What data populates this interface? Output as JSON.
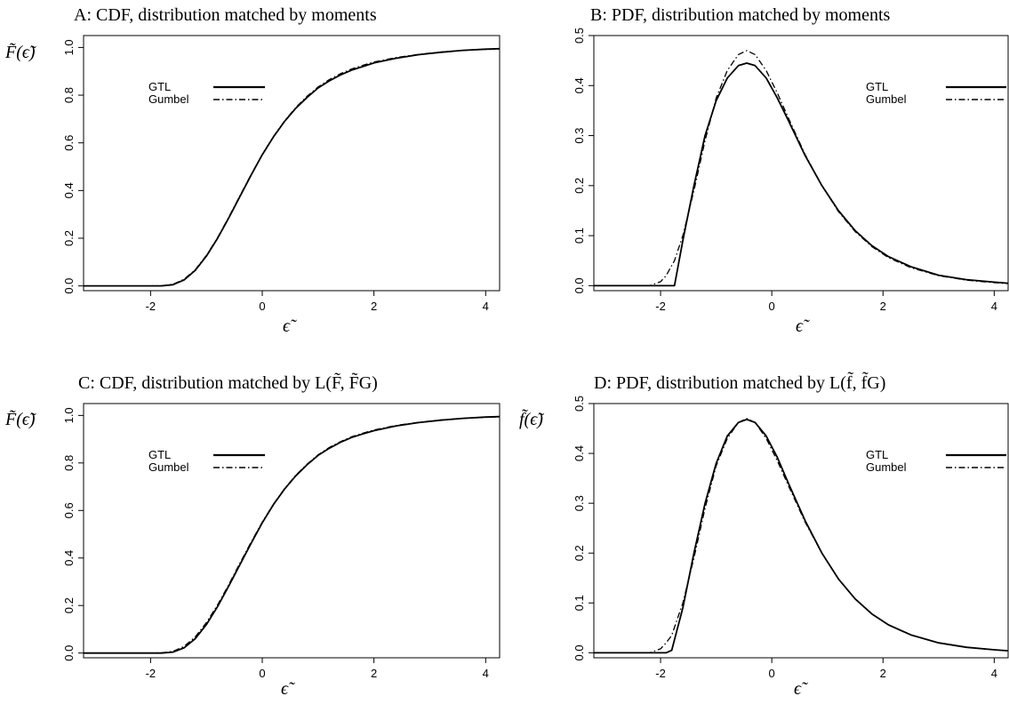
{
  "chart_data": [
    {
      "panel": "A",
      "type": "line",
      "title": "A: CDF, distribution matched by moments",
      "xlabel": "ϵ̃",
      "ylabel": "F̃(ϵ̃)",
      "xlim": [
        -3.2,
        4.25
      ],
      "ylim": [
        -0.02,
        1.05
      ],
      "xticks": [
        -2,
        0,
        2,
        4
      ],
      "yticks": [
        0.0,
        0.2,
        0.4,
        0.6,
        0.8,
        1.0
      ],
      "ytick_labels": [
        "0.0",
        "0.2",
        "0.4",
        "0.6",
        "0.8",
        "1.0"
      ],
      "xtick_labels": [
        "-2",
        "0",
        "2",
        "4"
      ],
      "legend": {
        "position": "top-left",
        "entries": [
          "GTL",
          "Gumbel"
        ]
      },
      "x": [
        -3.2,
        -2.0,
        -1.8,
        -1.6,
        -1.4,
        -1.2,
        -1.0,
        -0.8,
        -0.6,
        -0.4,
        -0.2,
        0.0,
        0.2,
        0.4,
        0.6,
        0.8,
        1.0,
        1.2,
        1.4,
        1.6,
        1.8,
        2.0,
        2.4,
        2.8,
        3.2,
        3.6,
        4.0,
        4.25
      ],
      "series": [
        {
          "name": "GTL",
          "style": "solid",
          "values": [
            0.0,
            0.0,
            0.0,
            0.005,
            0.025,
            0.065,
            0.125,
            0.2,
            0.285,
            0.375,
            0.465,
            0.55,
            0.625,
            0.69,
            0.745,
            0.79,
            0.83,
            0.86,
            0.885,
            0.905,
            0.92,
            0.935,
            0.955,
            0.97,
            0.98,
            0.988,
            0.993,
            0.995
          ]
        },
        {
          "name": "Gumbel",
          "style": "dashdot",
          "values": [
            0.0,
            0.0,
            0.001,
            0.007,
            0.028,
            0.068,
            0.128,
            0.203,
            0.288,
            0.378,
            0.467,
            0.551,
            0.627,
            0.692,
            0.748,
            0.795,
            0.834,
            0.865,
            0.89,
            0.91,
            0.925,
            0.939,
            0.958,
            0.971,
            0.981,
            0.988,
            0.992,
            0.994
          ]
        }
      ]
    },
    {
      "panel": "B",
      "type": "line",
      "title": "B: PDF, distribution matched by moments",
      "xlabel": "ϵ̃",
      "ylabel": "",
      "xlim": [
        -3.2,
        4.25
      ],
      "ylim": [
        -0.01,
        0.5
      ],
      "xticks": [
        -2,
        0,
        2,
        4
      ],
      "yticks": [
        0.0,
        0.1,
        0.2,
        0.3,
        0.4,
        0.5
      ],
      "ytick_labels": [
        "0.0",
        "0.1",
        "0.2",
        "0.3",
        "0.4",
        "0.5"
      ],
      "xtick_labels": [
        "-2",
        "0",
        "2",
        "4"
      ],
      "legend": {
        "position": "top-right",
        "entries": [
          "GTL",
          "Gumbel"
        ]
      },
      "x": [
        -3.2,
        -2.2,
        -2.0,
        -1.9,
        -1.75,
        -1.6,
        -1.4,
        -1.2,
        -1.0,
        -0.8,
        -0.6,
        -0.45,
        -0.3,
        -0.1,
        0.1,
        0.3,
        0.6,
        0.9,
        1.2,
        1.5,
        1.8,
        2.1,
        2.5,
        3.0,
        3.5,
        4.0,
        4.25
      ],
      "series": [
        {
          "name": "GTL",
          "style": "solid",
          "values": [
            0.0,
            0.0,
            0.0,
            0.0,
            0.0,
            0.09,
            0.2,
            0.3,
            0.37,
            0.415,
            0.44,
            0.445,
            0.44,
            0.415,
            0.375,
            0.33,
            0.26,
            0.2,
            0.15,
            0.11,
            0.08,
            0.058,
            0.038,
            0.021,
            0.012,
            0.007,
            0.005
          ]
        },
        {
          "name": "Gumbel",
          "style": "dashdot",
          "values": [
            0.0,
            0.0,
            0.008,
            0.02,
            0.05,
            0.1,
            0.19,
            0.29,
            0.375,
            0.43,
            0.462,
            0.47,
            0.462,
            0.43,
            0.385,
            0.335,
            0.262,
            0.2,
            0.148,
            0.108,
            0.078,
            0.056,
            0.036,
            0.02,
            0.011,
            0.006,
            0.004
          ]
        }
      ]
    },
    {
      "panel": "C",
      "type": "line",
      "title": "C: CDF, distribution matched by L(F̃, F̃G)",
      "xlabel": "ϵ̃",
      "ylabel": "F̃(ϵ̃)",
      "xlim": [
        -3.2,
        4.25
      ],
      "ylim": [
        -0.02,
        1.05
      ],
      "xticks": [
        -2,
        0,
        2,
        4
      ],
      "yticks": [
        0.0,
        0.2,
        0.4,
        0.6,
        0.8,
        1.0
      ],
      "ytick_labels": [
        "0.0",
        "0.2",
        "0.4",
        "0.6",
        "0.8",
        "1.0"
      ],
      "xtick_labels": [
        "-2",
        "0",
        "2",
        "4"
      ],
      "legend": {
        "position": "top-left",
        "entries": [
          "GTL",
          "Gumbel"
        ]
      },
      "x": [
        -3.2,
        -2.0,
        -1.8,
        -1.6,
        -1.4,
        -1.2,
        -1.0,
        -0.8,
        -0.6,
        -0.4,
        -0.2,
        0.0,
        0.2,
        0.4,
        0.6,
        0.8,
        1.0,
        1.2,
        1.4,
        1.6,
        1.8,
        2.0,
        2.4,
        2.8,
        3.2,
        3.6,
        4.0,
        4.25
      ],
      "series": [
        {
          "name": "GTL",
          "style": "solid",
          "values": [
            0.0,
            0.0,
            0.0,
            0.004,
            0.022,
            0.06,
            0.12,
            0.196,
            0.282,
            0.372,
            0.462,
            0.548,
            0.625,
            0.69,
            0.746,
            0.792,
            0.832,
            0.862,
            0.887,
            0.907,
            0.922,
            0.936,
            0.956,
            0.97,
            0.98,
            0.988,
            0.993,
            0.995
          ]
        },
        {
          "name": "Gumbel",
          "style": "dashdot",
          "values": [
            0.0,
            0.0,
            0.001,
            0.007,
            0.028,
            0.068,
            0.128,
            0.203,
            0.288,
            0.378,
            0.467,
            0.551,
            0.627,
            0.692,
            0.748,
            0.795,
            0.834,
            0.865,
            0.89,
            0.91,
            0.925,
            0.939,
            0.958,
            0.971,
            0.981,
            0.988,
            0.992,
            0.994
          ]
        }
      ]
    },
    {
      "panel": "D",
      "type": "line",
      "title": "D: PDF, distribution matched by L(f̃, f̃G)",
      "xlabel": "ϵ̃",
      "ylabel": "f̃(ϵ̃)",
      "xlim": [
        -3.2,
        4.25
      ],
      "ylim": [
        -0.01,
        0.5
      ],
      "xticks": [
        -2,
        0,
        2,
        4
      ],
      "yticks": [
        0.0,
        0.1,
        0.2,
        0.3,
        0.4,
        0.5
      ],
      "ytick_labels": [
        "0.0",
        "0.1",
        "0.2",
        "0.3",
        "0.4",
        "0.5"
      ],
      "xtick_labels": [
        "-2",
        "0",
        "2",
        "4"
      ],
      "legend": {
        "position": "top-right",
        "entries": [
          "GTL",
          "Gumbel"
        ]
      },
      "x": [
        -3.2,
        -2.2,
        -2.0,
        -1.9,
        -1.8,
        -1.6,
        -1.4,
        -1.2,
        -1.0,
        -0.8,
        -0.6,
        -0.45,
        -0.3,
        -0.1,
        0.1,
        0.3,
        0.6,
        0.9,
        1.2,
        1.5,
        1.8,
        2.1,
        2.5,
        3.0,
        3.5,
        4.0,
        4.25
      ],
      "series": [
        {
          "name": "GTL",
          "style": "solid",
          "values": [
            0.0,
            0.0,
            0.0,
            0.0,
            0.005,
            0.09,
            0.2,
            0.3,
            0.38,
            0.435,
            0.462,
            0.468,
            0.462,
            0.435,
            0.392,
            0.34,
            0.265,
            0.2,
            0.148,
            0.108,
            0.078,
            0.056,
            0.036,
            0.02,
            0.011,
            0.006,
            0.004
          ]
        },
        {
          "name": "Gumbel",
          "style": "dashdot",
          "values": [
            0.0,
            0.0,
            0.008,
            0.02,
            0.035,
            0.1,
            0.19,
            0.29,
            0.375,
            0.43,
            0.462,
            0.47,
            0.462,
            0.43,
            0.385,
            0.335,
            0.262,
            0.2,
            0.148,
            0.108,
            0.078,
            0.056,
            0.036,
            0.02,
            0.011,
            0.006,
            0.004
          ]
        }
      ]
    }
  ]
}
